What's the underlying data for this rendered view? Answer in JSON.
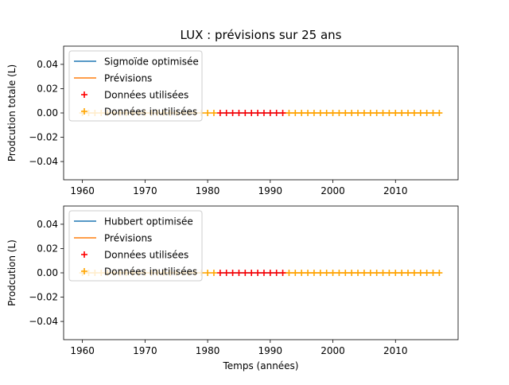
{
  "figure": {
    "title": "LUX : prévisions sur 25 ans"
  },
  "chart_data": [
    {
      "type": "scatter",
      "ylabel": "Prodcution totale (L)",
      "xlabel": "",
      "xlim": [
        1957,
        2020
      ],
      "ylim": [
        -0.055,
        0.055
      ],
      "xticks": [
        1960,
        1970,
        1980,
        1990,
        2000,
        2010
      ],
      "yticks": [
        0.04,
        0.02,
        0.0,
        -0.02,
        -0.04
      ],
      "ytick_labels": [
        "0.04",
        "0.02",
        "0.00",
        "−0.02",
        "−0.04"
      ],
      "grid": false,
      "legend_position": "top-left",
      "legend": [
        {
          "label": "Sigmoïde optimisée",
          "kind": "line",
          "color": "#1f77b4"
        },
        {
          "label": "Prévisions",
          "kind": "line",
          "color": "#ff7f0e"
        },
        {
          "label": "Données utilisées",
          "kind": "plus",
          "color": "#ff0000"
        },
        {
          "label": "Données inutilisées",
          "kind": "plus",
          "color": "#ffa500"
        }
      ],
      "series": [
        {
          "name": "Sigmoïde optimisée",
          "kind": "line",
          "color": "#1f77b4",
          "x": [
            1982,
            1992
          ],
          "y": [
            0,
            0
          ]
        },
        {
          "name": "Prévisions",
          "kind": "line",
          "color": "#ff7f0e",
          "x": [
            1992,
            2017
          ],
          "y": [
            0,
            0
          ]
        },
        {
          "name": "Données utilisées",
          "kind": "plus",
          "color": "#ff0000",
          "x": [
            1982,
            1983,
            1984,
            1985,
            1986,
            1987,
            1988,
            1989,
            1990,
            1991,
            1992
          ],
          "y": [
            0,
            0,
            0,
            0,
            0,
            0,
            0,
            0,
            0,
            0,
            0
          ]
        },
        {
          "name": "Données inutilisées",
          "kind": "plus",
          "color": "#ffa500",
          "x": [
            1960,
            1961,
            1962,
            1963,
            1964,
            1965,
            1966,
            1967,
            1968,
            1969,
            1970,
            1971,
            1972,
            1973,
            1974,
            1975,
            1976,
            1977,
            1978,
            1979,
            1980,
            1981,
            1993,
            1994,
            1995,
            1996,
            1997,
            1998,
            1999,
            2000,
            2001,
            2002,
            2003,
            2004,
            2005,
            2006,
            2007,
            2008,
            2009,
            2010,
            2011,
            2012,
            2013,
            2014,
            2015,
            2016,
            2017
          ],
          "y": [
            0,
            0,
            0,
            0,
            0,
            0,
            0,
            0,
            0,
            0,
            0,
            0,
            0,
            0,
            0,
            0,
            0,
            0,
            0,
            0,
            0,
            0,
            0,
            0,
            0,
            0,
            0,
            0,
            0,
            0,
            0,
            0,
            0,
            0,
            0,
            0,
            0,
            0,
            0,
            0,
            0,
            0,
            0,
            0,
            0,
            0,
            0
          ]
        }
      ]
    },
    {
      "type": "scatter",
      "ylabel": "Prodcution (L)",
      "xlabel": "Temps (années)",
      "xlim": [
        1957,
        2020
      ],
      "ylim": [
        -0.055,
        0.055
      ],
      "xticks": [
        1960,
        1970,
        1980,
        1990,
        2000,
        2010
      ],
      "yticks": [
        0.04,
        0.02,
        0.0,
        -0.02,
        -0.04
      ],
      "ytick_labels": [
        "0.04",
        "0.02",
        "0.00",
        "−0.02",
        "−0.04"
      ],
      "grid": false,
      "legend_position": "top-left",
      "legend": [
        {
          "label": "Hubbert optimisée",
          "kind": "line",
          "color": "#1f77b4"
        },
        {
          "label": "Prévisions",
          "kind": "line",
          "color": "#ff7f0e"
        },
        {
          "label": "Données utilisées",
          "kind": "plus",
          "color": "#ff0000"
        },
        {
          "label": "Données inutilisées",
          "kind": "plus",
          "color": "#ffa500"
        }
      ],
      "series": [
        {
          "name": "Hubbert optimisée",
          "kind": "line",
          "color": "#1f77b4",
          "x": [
            1982,
            1992
          ],
          "y": [
            0,
            0
          ]
        },
        {
          "name": "Prévisions",
          "kind": "line",
          "color": "#ff7f0e",
          "x": [
            1992,
            2017
          ],
          "y": [
            0,
            0
          ]
        },
        {
          "name": "Données utilisées",
          "kind": "plus",
          "color": "#ff0000",
          "x": [
            1982,
            1983,
            1984,
            1985,
            1986,
            1987,
            1988,
            1989,
            1990,
            1991,
            1992
          ],
          "y": [
            0,
            0,
            0,
            0,
            0,
            0,
            0,
            0,
            0,
            0,
            0
          ]
        },
        {
          "name": "Données inutilisées",
          "kind": "plus",
          "color": "#ffa500",
          "x": [
            1960,
            1961,
            1962,
            1963,
            1964,
            1965,
            1966,
            1967,
            1968,
            1969,
            1970,
            1971,
            1972,
            1973,
            1974,
            1975,
            1976,
            1977,
            1978,
            1979,
            1980,
            1981,
            1993,
            1994,
            1995,
            1996,
            1997,
            1998,
            1999,
            2000,
            2001,
            2002,
            2003,
            2004,
            2005,
            2006,
            2007,
            2008,
            2009,
            2010,
            2011,
            2012,
            2013,
            2014,
            2015,
            2016,
            2017
          ],
          "y": [
            0,
            0,
            0,
            0,
            0,
            0,
            0,
            0,
            0,
            0,
            0,
            0,
            0,
            0,
            0,
            0,
            0,
            0,
            0,
            0,
            0,
            0,
            0,
            0,
            0,
            0,
            0,
            0,
            0,
            0,
            0,
            0,
            0,
            0,
            0,
            0,
            0,
            0,
            0,
            0,
            0,
            0,
            0,
            0,
            0,
            0,
            0
          ]
        }
      ]
    }
  ]
}
